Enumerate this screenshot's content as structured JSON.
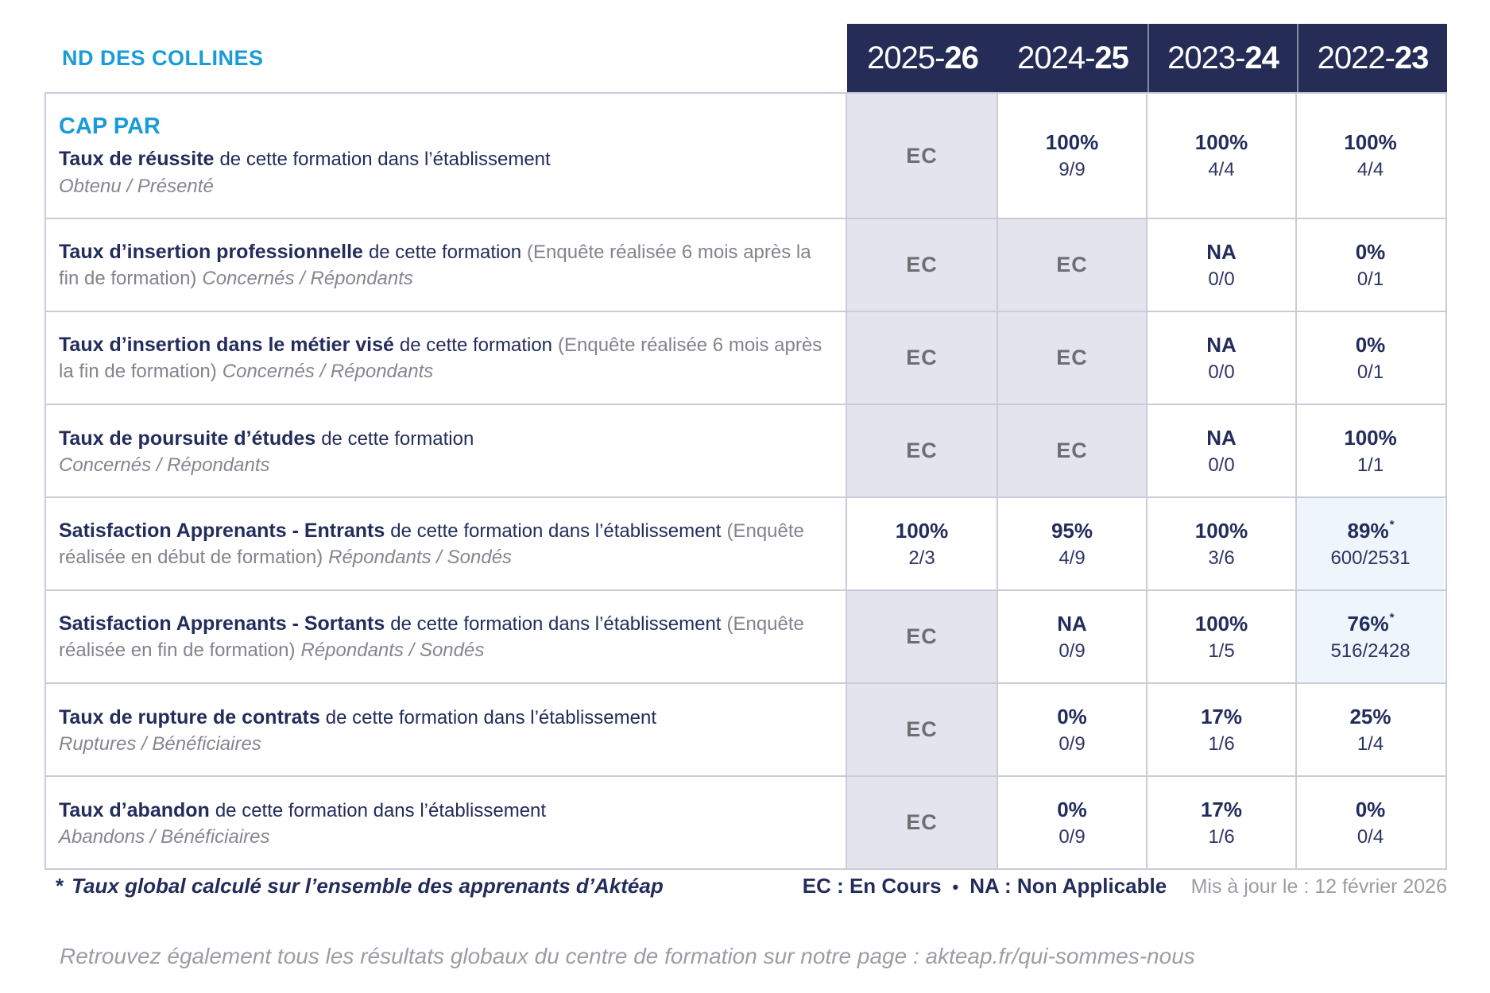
{
  "header": {
    "school": "ND DES COLLINES",
    "years": [
      {
        "prefix": "2025-",
        "suffix": "26"
      },
      {
        "prefix": "2024-",
        "suffix": "25"
      },
      {
        "prefix": "2023-",
        "suffix": "24"
      },
      {
        "prefix": "2022-",
        "suffix": "23"
      }
    ]
  },
  "table": {
    "rows": [
      {
        "program": "CAP PAR",
        "title": "Taux de réussite",
        "desc": "de cette formation dans l’établissement",
        "paren": "",
        "subtitle": "Obtenu / Présenté",
        "subtitle_inline": false,
        "cells": [
          {
            "value": "EC"
          },
          {
            "value": "100%",
            "fraction": "9/9"
          },
          {
            "value": "100%",
            "fraction": "4/4"
          },
          {
            "value": "100%",
            "fraction": "4/4"
          }
        ]
      },
      {
        "program": "",
        "title": "Taux d’insertion professionnelle",
        "desc": "de cette formation",
        "paren": "(Enquête réalisée 6 mois après la fin de formation)",
        "subtitle": "Concernés / Répondants",
        "subtitle_inline": true,
        "cells": [
          {
            "value": "EC"
          },
          {
            "value": "EC"
          },
          {
            "value": "NA",
            "fraction": "0/0"
          },
          {
            "value": "0%",
            "fraction": "0/1"
          }
        ]
      },
      {
        "program": "",
        "title": "Taux d’insertion dans le métier visé",
        "desc": "de cette formation",
        "paren": "(Enquête réalisée 6 mois après la fin de formation)",
        "subtitle": "Concernés / Répondants",
        "subtitle_inline": true,
        "cells": [
          {
            "value": "EC"
          },
          {
            "value": "EC"
          },
          {
            "value": "NA",
            "fraction": "0/0"
          },
          {
            "value": "0%",
            "fraction": "0/1"
          }
        ]
      },
      {
        "program": "",
        "title": "Taux de poursuite d’études",
        "desc": "de cette formation",
        "paren": "",
        "subtitle": "Concernés / Répondants",
        "subtitle_inline": false,
        "cells": [
          {
            "value": "EC"
          },
          {
            "value": "EC"
          },
          {
            "value": "NA",
            "fraction": "0/0"
          },
          {
            "value": "100%",
            "fraction": "1/1"
          }
        ]
      },
      {
        "program": "",
        "title": "Satisfaction Apprenants - Entrants",
        "desc": "de cette formation dans l’établissement",
        "paren": "(Enquête réalisée en début de formation)",
        "subtitle": "Répondants / Sondés",
        "subtitle_inline": true,
        "cells": [
          {
            "value": "100%",
            "fraction": "2/3"
          },
          {
            "value": "95%",
            "fraction": "4/9"
          },
          {
            "value": "100%",
            "fraction": "3/6"
          },
          {
            "value": "89%",
            "fraction": "600/2531",
            "asterisk": true
          }
        ]
      },
      {
        "program": "",
        "title": "Satisfaction Apprenants - Sortants",
        "desc": "de cette formation dans l’établissement",
        "paren": "(Enquête réalisée en fin de formation)",
        "subtitle": "Répondants / Sondés",
        "subtitle_inline": true,
        "cells": [
          {
            "value": "EC"
          },
          {
            "value": "NA",
            "fraction": "0/9"
          },
          {
            "value": "100%",
            "fraction": "1/5"
          },
          {
            "value": "76%",
            "fraction": "516/2428",
            "asterisk": true
          }
        ]
      },
      {
        "program": "",
        "title": "Taux de rupture de contrats",
        "desc": "de cette formation dans l’établissement",
        "paren": "",
        "subtitle": "Ruptures / Bénéficiaires",
        "subtitle_inline": false,
        "cells": [
          {
            "value": "EC"
          },
          {
            "value": "0%",
            "fraction": "0/9"
          },
          {
            "value": "17%",
            "fraction": "1/6"
          },
          {
            "value": "25%",
            "fraction": "1/4"
          }
        ]
      },
      {
        "program": "",
        "title": "Taux d’abandon",
        "desc": "de cette formation dans l’établissement",
        "paren": "",
        "subtitle": "Abandons / Bénéficiaires",
        "subtitle_inline": false,
        "cells": [
          {
            "value": "EC"
          },
          {
            "value": "0%",
            "fraction": "0/9"
          },
          {
            "value": "17%",
            "fraction": "1/6"
          },
          {
            "value": "0%",
            "fraction": "0/4"
          }
        ]
      }
    ]
  },
  "footer": {
    "footnote_marker": "*",
    "footnote": "Taux global calculé sur l’ensemble des apprenants d’Aktéap",
    "legend_ec": "EC : En Cours",
    "legend_sep": "•",
    "legend_na": "NA : Non Applicable",
    "updated": "Mis à jour le : 12 février 2026",
    "bottom_note": "Retrouvez également tous les résultats globaux du centre de formation sur notre page : akteap.fr/qui-sommes-nous"
  },
  "colors": {
    "accent_blue": "#1A9CD8",
    "navy_text": "#232D5B",
    "header_bg": "#252C55",
    "ec_cell_bg": "#E4E4EF",
    "highlight_cell_bg": "#EEF6FB",
    "grid_border": "#CACBD7"
  }
}
